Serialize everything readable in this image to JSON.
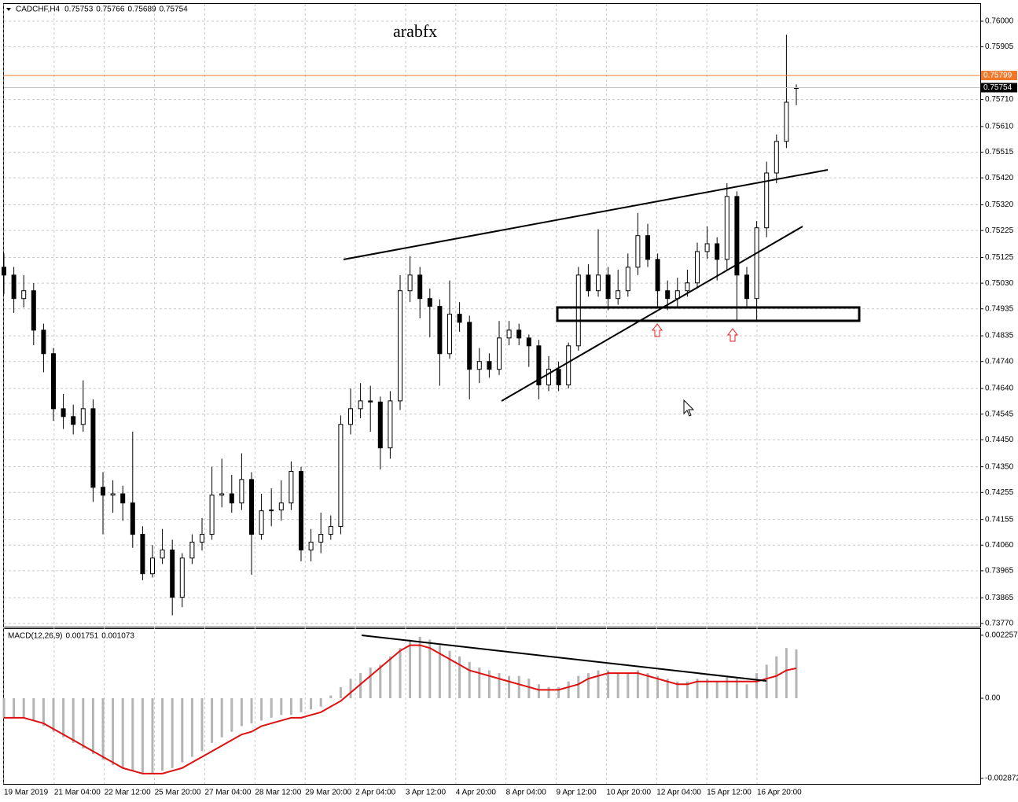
{
  "chart_data": [
    {
      "type": "candlestick",
      "title": "CADCHF,H4",
      "annotation": "arabfx",
      "ylim": [
        0.73758,
        0.76064
      ],
      "yticks": [
        {
          "value": 0.76,
          "label": "0.76000"
        },
        {
          "value": 0.75905,
          "label": "0.75905"
        },
        {
          "value": 0.7571,
          "label": "0.75710"
        },
        {
          "value": 0.7561,
          "label": "0.75610"
        },
        {
          "value": 0.75515,
          "label": "0.75515"
        },
        {
          "value": 0.7542,
          "label": "0.75420"
        },
        {
          "value": 0.7532,
          "label": "0.75320"
        },
        {
          "value": 0.75225,
          "label": "0.75225"
        },
        {
          "value": 0.75125,
          "label": "0.75125"
        },
        {
          "value": 0.7503,
          "label": "0.75030"
        },
        {
          "value": 0.74935,
          "label": "0.74935"
        },
        {
          "value": 0.74835,
          "label": "0.74835"
        },
        {
          "value": 0.7474,
          "label": "0.74740"
        },
        {
          "value": 0.7464,
          "label": "0.74640"
        },
        {
          "value": 0.74545,
          "label": "0.74545"
        },
        {
          "value": 0.7445,
          "label": "0.74450"
        },
        {
          "value": 0.7435,
          "label": "0.74350"
        },
        {
          "value": 0.74255,
          "label": "0.74255"
        },
        {
          "value": 0.74155,
          "label": "0.74155"
        },
        {
          "value": 0.7406,
          "label": "0.74060"
        },
        {
          "value": 0.73965,
          "label": "0.73965"
        },
        {
          "value": 0.73865,
          "label": "0.73865"
        },
        {
          "value": 0.7377,
          "label": "0.73770"
        }
      ],
      "grid": true,
      "up_color": "#ffffff",
      "down_color": "#000000",
      "price_lines": [
        {
          "value": 0.75799,
          "color": "#f0782a",
          "label_color": "#f0782a"
        },
        {
          "value": 0.75754,
          "color": "#c0c0c0",
          "label_color": "#000000"
        }
      ],
      "time_labels": [
        "19 Mar 2019",
        "21 Mar 04:00",
        "22 Mar 12:00",
        "25 Mar 20:00",
        "27 Mar 04:00",
        "28 Mar 12:00",
        "29 Mar 20:00",
        "2 Apr 04:00",
        "3 Apr 12:00",
        "4 Apr 20:00",
        "8 Apr 04:00",
        "9 Apr 12:00",
        "10 Apr 20:00",
        "12 Apr 04:00",
        "15 Apr 12:00",
        "16 Apr 20:00"
      ],
      "candles": [
        [
          0.75089,
          0.7514,
          0.7499,
          0.7506
        ],
        [
          0.7506,
          0.7509,
          0.7492,
          0.74973
        ],
        [
          0.74973,
          0.7506,
          0.7494,
          0.75002
        ],
        [
          0.75002,
          0.7503,
          0.748,
          0.74856
        ],
        [
          0.74856,
          0.7488,
          0.747,
          0.74769
        ],
        [
          0.74769,
          0.7479,
          0.7452,
          0.74565
        ],
        [
          0.74565,
          0.7462,
          0.7449,
          0.74536
        ],
        [
          0.74536,
          0.7458,
          0.7447,
          0.74507
        ],
        [
          0.74507,
          0.7467,
          0.7448,
          0.74565
        ],
        [
          0.74565,
          0.746,
          0.7422,
          0.74274
        ],
        [
          0.74274,
          0.7433,
          0.741,
          0.74245
        ],
        [
          0.74245,
          0.743,
          0.7418,
          0.7425
        ],
        [
          0.7425,
          0.7428,
          0.7415,
          0.74216
        ],
        [
          0.74216,
          0.7448,
          0.7405,
          0.741
        ],
        [
          0.741,
          0.7413,
          0.7393,
          0.73954
        ],
        [
          0.73954,
          0.7406,
          0.7394,
          0.74012
        ],
        [
          0.74012,
          0.7412,
          0.7399,
          0.74042
        ],
        [
          0.74042,
          0.7408,
          0.738,
          0.73867
        ],
        [
          0.73867,
          0.7403,
          0.7383,
          0.74012
        ],
        [
          0.74012,
          0.741,
          0.7399,
          0.74071
        ],
        [
          0.74071,
          0.7416,
          0.7404,
          0.741
        ],
        [
          0.741,
          0.7435,
          0.7408,
          0.74245
        ],
        [
          0.74245,
          0.7438,
          0.742,
          0.7425
        ],
        [
          0.7425,
          0.7432,
          0.7418,
          0.74216
        ],
        [
          0.74216,
          0.744,
          0.7419,
          0.74303
        ],
        [
          0.74303,
          0.7433,
          0.7395,
          0.741
        ],
        [
          0.741,
          0.7425,
          0.7408,
          0.74187
        ],
        [
          0.74187,
          0.7427,
          0.7413,
          0.7419
        ],
        [
          0.7419,
          0.743,
          0.7415,
          0.74216
        ],
        [
          0.74216,
          0.7437,
          0.7419,
          0.74333
        ],
        [
          0.74333,
          0.7435,
          0.74,
          0.74042
        ],
        [
          0.74042,
          0.7412,
          0.74,
          0.74071
        ],
        [
          0.74071,
          0.7418,
          0.7403,
          0.741
        ],
        [
          0.741,
          0.7417,
          0.7408,
          0.74129
        ],
        [
          0.74129,
          0.7454,
          0.741,
          0.74507
        ],
        [
          0.74507,
          0.7464,
          0.7447,
          0.74565
        ],
        [
          0.74565,
          0.7466,
          0.7453,
          0.74594
        ],
        [
          0.74594,
          0.7465,
          0.7448,
          0.7459
        ],
        [
          0.7459,
          0.7461,
          0.7434,
          0.7442
        ],
        [
          0.7442,
          0.7463,
          0.7438,
          0.74594
        ],
        [
          0.74594,
          0.7506,
          0.7456,
          0.75002
        ],
        [
          0.75002,
          0.7513,
          0.7496,
          0.7506
        ],
        [
          0.7506,
          0.7509,
          0.749,
          0.74973
        ],
        [
          0.74973,
          0.7501,
          0.7483,
          0.74944
        ],
        [
          0.74944,
          0.7497,
          0.7465,
          0.74769
        ],
        [
          0.74769,
          0.7504,
          0.7475,
          0.74915
        ],
        [
          0.74915,
          0.7496,
          0.7485,
          0.74885
        ],
        [
          0.74885,
          0.7491,
          0.746,
          0.74711
        ],
        [
          0.74711,
          0.7479,
          0.7466,
          0.7474
        ],
        [
          0.7474,
          0.7477,
          0.7468,
          0.74711
        ],
        [
          0.74711,
          0.7489,
          0.7469,
          0.74827
        ],
        [
          0.74827,
          0.7489,
          0.748,
          0.74856
        ],
        [
          0.74856,
          0.7488,
          0.748,
          0.74827
        ],
        [
          0.74827,
          0.7484,
          0.7472,
          0.74798
        ],
        [
          0.74798,
          0.7482,
          0.746,
          0.74653
        ],
        [
          0.74653,
          0.7476,
          0.7463,
          0.74711
        ],
        [
          0.74711,
          0.7474,
          0.7463,
          0.74653
        ],
        [
          0.74653,
          0.7481,
          0.7464,
          0.74798
        ],
        [
          0.74798,
          0.7509,
          0.7478,
          0.7506
        ],
        [
          0.7506,
          0.751,
          0.7498,
          0.75002
        ],
        [
          0.75002,
          0.7523,
          0.7498,
          0.7506
        ],
        [
          0.7506,
          0.7509,
          0.7493,
          0.74973
        ],
        [
          0.74973,
          0.7508,
          0.7495,
          0.75002
        ],
        [
          0.75002,
          0.7514,
          0.7498,
          0.75089
        ],
        [
          0.75089,
          0.7529,
          0.7506,
          0.75206
        ],
        [
          0.75206,
          0.7525,
          0.7509,
          0.75118
        ],
        [
          0.75118,
          0.7514,
          0.7494,
          0.75002
        ],
        [
          0.75002,
          0.7504,
          0.7493,
          0.74973
        ],
        [
          0.74973,
          0.7505,
          0.7494,
          0.75002
        ],
        [
          0.75002,
          0.7508,
          0.7498,
          0.75031
        ],
        [
          0.75031,
          0.7518,
          0.7501,
          0.75147
        ],
        [
          0.75147,
          0.7524,
          0.7512,
          0.75176
        ],
        [
          0.75176,
          0.752,
          0.7504,
          0.75118
        ],
        [
          0.75118,
          0.754,
          0.7508,
          0.75351
        ],
        [
          0.75351,
          0.7537,
          0.7489,
          0.7506
        ],
        [
          0.7506,
          0.7509,
          0.7494,
          0.74973
        ],
        [
          0.74973,
          0.7526,
          0.7489,
          0.75235
        ],
        [
          0.75235,
          0.7548,
          0.752,
          0.75438
        ],
        [
          0.75438,
          0.7558,
          0.754,
          0.75555
        ],
        [
          0.75555,
          0.7595,
          0.7553,
          0.757
        ],
        [
          0.75753,
          0.75766,
          0.75689,
          0.75754
        ]
      ]
    },
    {
      "type": "macd",
      "title": "MACD(12,26,9)",
      "ylim": [
        -0.00307,
        0.00248
      ],
      "yticks": [
        0.002257,
        {
          "value": 0,
          "label": "0.00"
        },
        -0.002872
      ],
      "histogram": {
        "color": "#b4b4b4",
        "values": [
          -0.0007,
          -0.0007,
          -0.0007,
          -0.0008,
          -0.001,
          -0.0012,
          -0.0014,
          -0.0016,
          -0.0018,
          -0.002,
          -0.0022,
          -0.0024,
          -0.0025,
          -0.0026,
          -0.0027,
          -0.0027,
          -0.0026,
          -0.0025,
          -0.0023,
          -0.0021,
          -0.0019,
          -0.0016,
          -0.0014,
          -0.0012,
          -0.001,
          -0.0009,
          -0.0008,
          -0.0007,
          -0.0006,
          -0.0006,
          -0.0005,
          -0.0004,
          -0.0003,
          0.0001,
          0.0004,
          0.0007,
          0.0009,
          0.0011,
          0.0012,
          0.0015,
          0.0018,
          0.0021,
          0.0022,
          0.0021,
          0.0019,
          0.0017,
          0.0015,
          0.0013,
          0.0011,
          0.001,
          0.0009,
          0.0008,
          0.0008,
          0.0007,
          0.0005,
          0.0004,
          0.0004,
          0.0006,
          0.0008,
          0.0009,
          0.001,
          0.001,
          0.0009,
          0.0009,
          0.001,
          0.0009,
          0.0008,
          0.0007,
          0.0006,
          0.0006,
          0.0007,
          0.0007,
          0.0006,
          0.0008,
          0.0007,
          0.0005,
          0.0009,
          0.0012,
          0.0015,
          0.0018,
          0.001751
        ]
      },
      "signal": {
        "color": "#e01010",
        "values": [
          -0.0007,
          -0.0007,
          -0.0007,
          -0.0008,
          -0.0009,
          -0.0011,
          -0.0013,
          -0.0015,
          -0.0017,
          -0.0019,
          -0.0021,
          -0.0023,
          -0.0025,
          -0.0026,
          -0.0027,
          -0.0027,
          -0.0027,
          -0.0026,
          -0.0025,
          -0.0023,
          -0.0021,
          -0.0019,
          -0.0017,
          -0.0015,
          -0.0013,
          -0.0012,
          -0.001,
          -0.0009,
          -0.0008,
          -0.0007,
          -0.0007,
          -0.0006,
          -0.0005,
          -0.0003,
          -0.0001,
          0.0002,
          0.0005,
          0.0008,
          0.0011,
          0.0014,
          0.0017,
          0.0019,
          0.0019,
          0.0018,
          0.0016,
          0.0014,
          0.0012,
          0.001,
          0.0009,
          0.0008,
          0.0007,
          0.0006,
          0.0005,
          0.0004,
          0.0003,
          0.0003,
          0.0003,
          0.0004,
          0.0005,
          0.0007,
          0.0008,
          0.0009,
          0.0009,
          0.0009,
          0.0009,
          0.0008,
          0.0007,
          0.0006,
          0.0005,
          0.0005,
          0.0006,
          0.0006,
          0.0006,
          0.0006,
          0.0006,
          0.0006,
          0.0006,
          0.0007,
          0.0008,
          0.001,
          0.001073
        ]
      }
    }
  ]
}
